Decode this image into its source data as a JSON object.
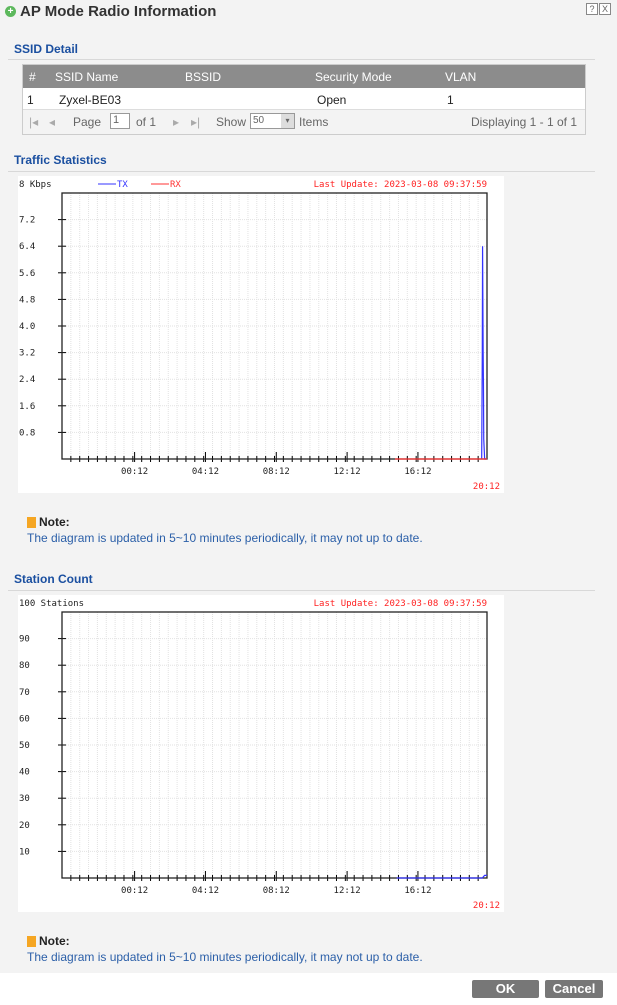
{
  "window": {
    "title": "AP Mode Radio Information",
    "help_icon": "?",
    "close_icon": "X"
  },
  "ssid_detail": {
    "heading": "SSID Detail",
    "columns": [
      "#",
      "SSID Name",
      "BSSID",
      "Security Mode",
      "VLAN"
    ],
    "rows": [
      [
        "1",
        "Zyxel-BE03",
        "",
        "Open",
        "1"
      ]
    ],
    "pager": {
      "page_label": "Page",
      "page_value": "1",
      "of_label": "of 1",
      "show_label": "Show",
      "show_value": "50",
      "items_label": "Items",
      "displaying": "Displaying 1 - 1 of 1"
    }
  },
  "traffic": {
    "heading": "Traffic Statistics",
    "note_title": "Note:",
    "note_text": "The diagram is updated in 5~10 minutes periodically, it may not up to date."
  },
  "station": {
    "heading": "Station Count",
    "note_title": "Note:",
    "note_text": "The diagram is updated in 5~10 minutes periodically, it may not up to date."
  },
  "chart_data": [
    {
      "type": "line",
      "unit_label": "8 Kbps",
      "last_update": "Last Update: 2023-03-08 09:37:59",
      "end_label": "20:12",
      "ylim": [
        0,
        8
      ],
      "yticks": [
        "0.8",
        "1.6",
        "2.4",
        "3.2",
        "4.0",
        "4.8",
        "5.6",
        "6.4",
        "7.2"
      ],
      "xticks": [
        "00:12",
        "04:12",
        "08:12",
        "12:12",
        "16:12"
      ],
      "xlim": [
        "20:06",
        "20:06"
      ],
      "grid": true,
      "legend": "top",
      "series": [
        {
          "name": "TX",
          "color": "#3333ff",
          "points": [
            [
              "19:48",
              0
            ],
            [
              "19:50",
              3.2
            ],
            [
              "19:51",
              6.4
            ],
            [
              "19:52",
              4.8
            ],
            [
              "19:53",
              3.2
            ],
            [
              "19:54",
              2.2
            ],
            [
              "19:55",
              0.6
            ],
            [
              "19:58",
              0
            ],
            [
              "20:06",
              0
            ]
          ]
        },
        {
          "name": "RX",
          "color": "#ff3333",
          "points": [
            [
              "14:54",
              0
            ],
            [
              "20:06",
              0
            ]
          ]
        }
      ]
    },
    {
      "type": "line",
      "unit_label": "100 Stations",
      "last_update": "Last Update: 2023-03-08 09:37:59",
      "end_label": "20:12",
      "ylim": [
        0,
        100
      ],
      "yticks": [
        "10",
        "20",
        "30",
        "40",
        "50",
        "60",
        "70",
        "80",
        "90"
      ],
      "xticks": [
        "00:12",
        "04:12",
        "08:12",
        "12:12",
        "16:12"
      ],
      "xlim": [
        "20:06",
        "20:06"
      ],
      "grid": true,
      "series": [
        {
          "color": "#3333ff",
          "points": [
            [
              "15:00",
              0
            ],
            [
              "19:50",
              0
            ],
            [
              "19:58",
              1
            ],
            [
              "20:06",
              1
            ]
          ]
        }
      ]
    }
  ],
  "buttons": {
    "ok": "OK",
    "cancel": "Cancel"
  }
}
